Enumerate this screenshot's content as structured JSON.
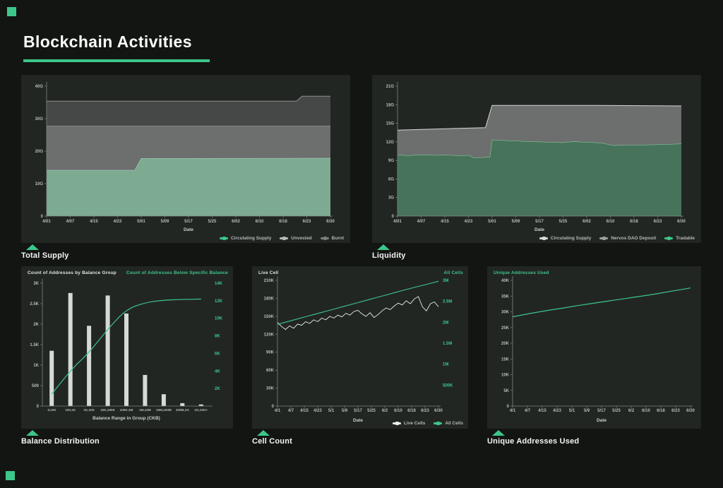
{
  "page": {
    "title": "Blockchain Activities"
  },
  "colors": {
    "accent": "#3cc68a",
    "background": "#131512",
    "panel": "#222623"
  },
  "captions": {
    "total_supply": "Total Supply",
    "liquidity": "Liquidity",
    "balance_distribution": "Balance Distribution",
    "cell_count": "Cell Count",
    "unique_addresses": "Unique Addresses Used"
  },
  "chart_data": [
    {
      "id": "total_supply",
      "type": "stacked_area",
      "caption": "Total Supply",
      "xlabel": "Date",
      "x_tick_labels": [
        "4/01",
        "4/07",
        "4/15",
        "4/23",
        "5/01",
        "5/09",
        "5/17",
        "5/25",
        "6/02",
        "6/10",
        "6/18",
        "6/23",
        "6/30"
      ],
      "ylim": [
        0,
        40
      ],
      "unit": "G CKB",
      "yticks": [
        {
          "v": 0,
          "label": "0"
        },
        {
          "v": 10,
          "label": "10G"
        },
        {
          "v": 20,
          "label": "20G"
        },
        {
          "v": 30,
          "label": "30G"
        },
        {
          "v": 40,
          "label": "40G"
        }
      ],
      "series": [
        {
          "name": "Circulating Supply",
          "fill": "#7dab92",
          "line": "#aed6c1",
          "points": [
            [
              0,
              14.2
            ],
            [
              0.31,
              14.2
            ],
            [
              0.333,
              17.8
            ],
            [
              1,
              17.9
            ]
          ]
        },
        {
          "name": "Unvested",
          "fill": "#6c6f6d",
          "line": "#a7aaa8",
          "points": [
            [
              0,
              27.8
            ],
            [
              1,
              27.8
            ]
          ]
        },
        {
          "name": "Burnt",
          "fill": "#454846",
          "line": "#8e918f",
          "points": [
            [
              0,
              35.4
            ],
            [
              0.88,
              35.4
            ],
            [
              0.9,
              36.9
            ],
            [
              1,
              36.9
            ]
          ]
        }
      ],
      "legend": [
        {
          "label": "Circulating Supply",
          "color": "#3cc68a"
        },
        {
          "label": "Unvested",
          "color": "#b7bab8"
        },
        {
          "label": "Burnt",
          "color": "#7a7d7b"
        }
      ]
    },
    {
      "id": "liquidity",
      "type": "stacked_area",
      "caption": "Liquidity",
      "xlabel": "Date",
      "x_tick_labels": [
        "4/01",
        "4/07",
        "4/15",
        "4/23",
        "5/01",
        "5/09",
        "5/17",
        "5/25",
        "6/02",
        "6/10",
        "6/18",
        "6/23",
        "6/30"
      ],
      "ylim": [
        0,
        21
      ],
      "unit": "G CKB",
      "yticks": [
        {
          "v": 0,
          "label": "0"
        },
        {
          "v": 3,
          "label": "3G"
        },
        {
          "v": 6,
          "label": "6G"
        },
        {
          "v": 9,
          "label": "9G"
        },
        {
          "v": 12,
          "label": "12G"
        },
        {
          "v": 15,
          "label": "15G"
        },
        {
          "v": 18,
          "label": "18G"
        },
        {
          "v": 21,
          "label": "21G"
        }
      ],
      "series": [
        {
          "name": "Tradable",
          "fill": "#47735a",
          "line": "#92d4af",
          "points": [
            [
              0,
              9.9
            ],
            [
              0.04,
              9.8
            ],
            [
              0.08,
              9.95
            ],
            [
              0.13,
              9.85
            ],
            [
              0.17,
              9.9
            ],
            [
              0.22,
              9.8
            ],
            [
              0.25,
              9.85
            ],
            [
              0.27,
              9.45
            ],
            [
              0.3,
              9.5
            ],
            [
              0.325,
              9.55
            ],
            [
              0.333,
              12.35
            ],
            [
              0.38,
              12.25
            ],
            [
              0.45,
              12.1
            ],
            [
              0.52,
              12.0
            ],
            [
              0.58,
              11.9
            ],
            [
              0.62,
              12.05
            ],
            [
              0.67,
              11.95
            ],
            [
              0.72,
              11.85
            ],
            [
              0.76,
              11.45
            ],
            [
              0.82,
              11.5
            ],
            [
              0.9,
              11.55
            ],
            [
              1,
              11.7
            ]
          ]
        },
        {
          "name": "Nervos DAO Deposit",
          "fill": "#6c6f6d",
          "line": "#d2d5d3",
          "points": [
            [
              0,
              13.9
            ],
            [
              0.31,
              14.3
            ],
            [
              0.333,
              17.9
            ],
            [
              0.7,
              17.9
            ],
            [
              1,
              17.8
            ]
          ]
        }
      ],
      "legend": [
        {
          "label": "Circulating Supply",
          "color": "#d8dbd9"
        },
        {
          "label": "Nervos DAO Deposit",
          "color": "#9b9e9c"
        },
        {
          "label": "Tradable",
          "color": "#3cc68a"
        }
      ]
    },
    {
      "id": "balance_distribution",
      "type": "bar_line",
      "caption": "Balance Distribution",
      "title_left": "Count of Addresses by Balance Group",
      "title_right": "Count of Addresses Below Specific Balance",
      "xlabel": "Balance Range in Group (CKB)",
      "categories": [
        "0,100",
        "100,1K",
        "1K,10K",
        "10K,100K",
        "100K,1M",
        "1M,10M",
        "10M,100M",
        "100M,1G",
        "1G,10G+"
      ],
      "bars": {
        "name": "Count of Addresses by Balance Group",
        "color": "#d6dad7",
        "values": [
          1350,
          2760,
          1960,
          2700,
          2260,
          760,
          290,
          70,
          40
        ]
      },
      "line": {
        "name": "Count of Addresses Below Specific Balance",
        "color": "#3cc68a",
        "values": [
          1350,
          4110,
          6070,
          8770,
          11030,
          11790,
          12080,
          12150,
          12190
        ]
      },
      "ylim_left": [
        0,
        3000
      ],
      "yticks_left": [
        {
          "v": 0,
          "label": "0"
        },
        {
          "v": 500,
          "label": "500"
        },
        {
          "v": 1000,
          "label": "1K"
        },
        {
          "v": 1500,
          "label": "1.5K"
        },
        {
          "v": 2000,
          "label": "2K"
        },
        {
          "v": 2500,
          "label": "2.5K"
        },
        {
          "v": 3000,
          "label": "3K"
        }
      ],
      "ylim_right": [
        0,
        14000
      ],
      "yticks_right": [
        {
          "v": 2000,
          "label": "2K"
        },
        {
          "v": 4000,
          "label": "4K"
        },
        {
          "v": 6000,
          "label": "6K"
        },
        {
          "v": 8000,
          "label": "8K"
        },
        {
          "v": 10000,
          "label": "10K"
        },
        {
          "v": 12000,
          "label": "12K"
        },
        {
          "v": 14000,
          "label": "14K"
        }
      ]
    },
    {
      "id": "cell_count",
      "type": "dual_line",
      "caption": "Cell Count",
      "title_left": "Live Cell",
      "title_right": "All Cells",
      "xlabel": "Date",
      "x_tick_labels": [
        "4/1",
        "4/7",
        "4/15",
        "4/23",
        "5/1",
        "5/9",
        "5/17",
        "5/25",
        "6/2",
        "6/10",
        "6/18",
        "6/23",
        "6/30"
      ],
      "ylim_left": [
        0,
        210000
      ],
      "yticks_left": [
        {
          "v": 0,
          "label": "0"
        },
        {
          "v": 30000,
          "label": "30K"
        },
        {
          "v": 60000,
          "label": "60K"
        },
        {
          "v": 90000,
          "label": "90K"
        },
        {
          "v": 120000,
          "label": "120K"
        },
        {
          "v": 150000,
          "label": "150K"
        },
        {
          "v": 180000,
          "label": "180K"
        },
        {
          "v": 210000,
          "label": "210K"
        }
      ],
      "ylim_right": [
        0,
        3000000
      ],
      "yticks_right": [
        {
          "v": 500000,
          "label": "500K"
        },
        {
          "v": 1000000,
          "label": "1M"
        },
        {
          "v": 1500000,
          "label": "1.5M"
        },
        {
          "v": 2000000,
          "label": "2M"
        },
        {
          "v": 2500000,
          "label": "2.5M"
        },
        {
          "v": 3000000,
          "label": "3M"
        }
      ],
      "series": [
        {
          "name": "Live Cells",
          "axis": "left",
          "color": "#eaedea",
          "width": 0.9,
          "smooth": false,
          "values": [
            140000,
            133000,
            128000,
            134000,
            130000,
            137000,
            135000,
            141000,
            138000,
            144000,
            141000,
            147000,
            144000,
            150000,
            147000,
            152000,
            149000,
            155000,
            152000,
            158000,
            160000,
            154000,
            150000,
            156000,
            148000,
            153000,
            159000,
            164000,
            161000,
            167000,
            172000,
            169000,
            176000,
            171000,
            179000,
            183000,
            166000,
            159000,
            171000,
            174000,
            166000
          ]
        },
        {
          "name": "All Cells",
          "axis": "right",
          "color": "#3cc68a",
          "width": 1.1,
          "smooth": true,
          "values": [
            1950000,
            2030000,
            2110000,
            2190000,
            2270000,
            2350000,
            2430000,
            2510000,
            2590000,
            2670000,
            2750000,
            2830000,
            2900000,
            2980000
          ]
        }
      ],
      "legend": [
        {
          "label": "Live Cells",
          "color": "#eaedea"
        },
        {
          "label": "All Cells",
          "color": "#3cc68a"
        }
      ]
    },
    {
      "id": "unique_addresses",
      "type": "line",
      "caption": "Unique Addresses Used",
      "title_left": "Unique Addresses Used",
      "xlabel": "Date",
      "x_tick_labels": [
        "4/1",
        "4/7",
        "4/15",
        "4/23",
        "5/1",
        "5/9",
        "5/17",
        "5/25",
        "6/2",
        "6/10",
        "6/18",
        "6/23",
        "6/30"
      ],
      "ylim_left": [
        0,
        40000
      ],
      "yticks_left": [
        {
          "v": 0,
          "label": "0"
        },
        {
          "v": 5000,
          "label": "5K"
        },
        {
          "v": 10000,
          "label": "10K"
        },
        {
          "v": 15000,
          "label": "15K"
        },
        {
          "v": 20000,
          "label": "20K"
        },
        {
          "v": 25000,
          "label": "25K"
        },
        {
          "v": 30000,
          "label": "30K"
        },
        {
          "v": 35000,
          "label": "35K"
        },
        {
          "v": 40000,
          "label": "40K"
        }
      ],
      "series": [
        {
          "name": "Unique Addresses Used",
          "axis": "left",
          "color": "#3cc68a",
          "width": 1.2,
          "smooth": true,
          "values": [
            28400,
            29200,
            29900,
            30600,
            31200,
            31900,
            32500,
            33100,
            33700,
            34300,
            34900,
            35500,
            36200,
            36900,
            37600
          ]
        }
      ]
    }
  ]
}
